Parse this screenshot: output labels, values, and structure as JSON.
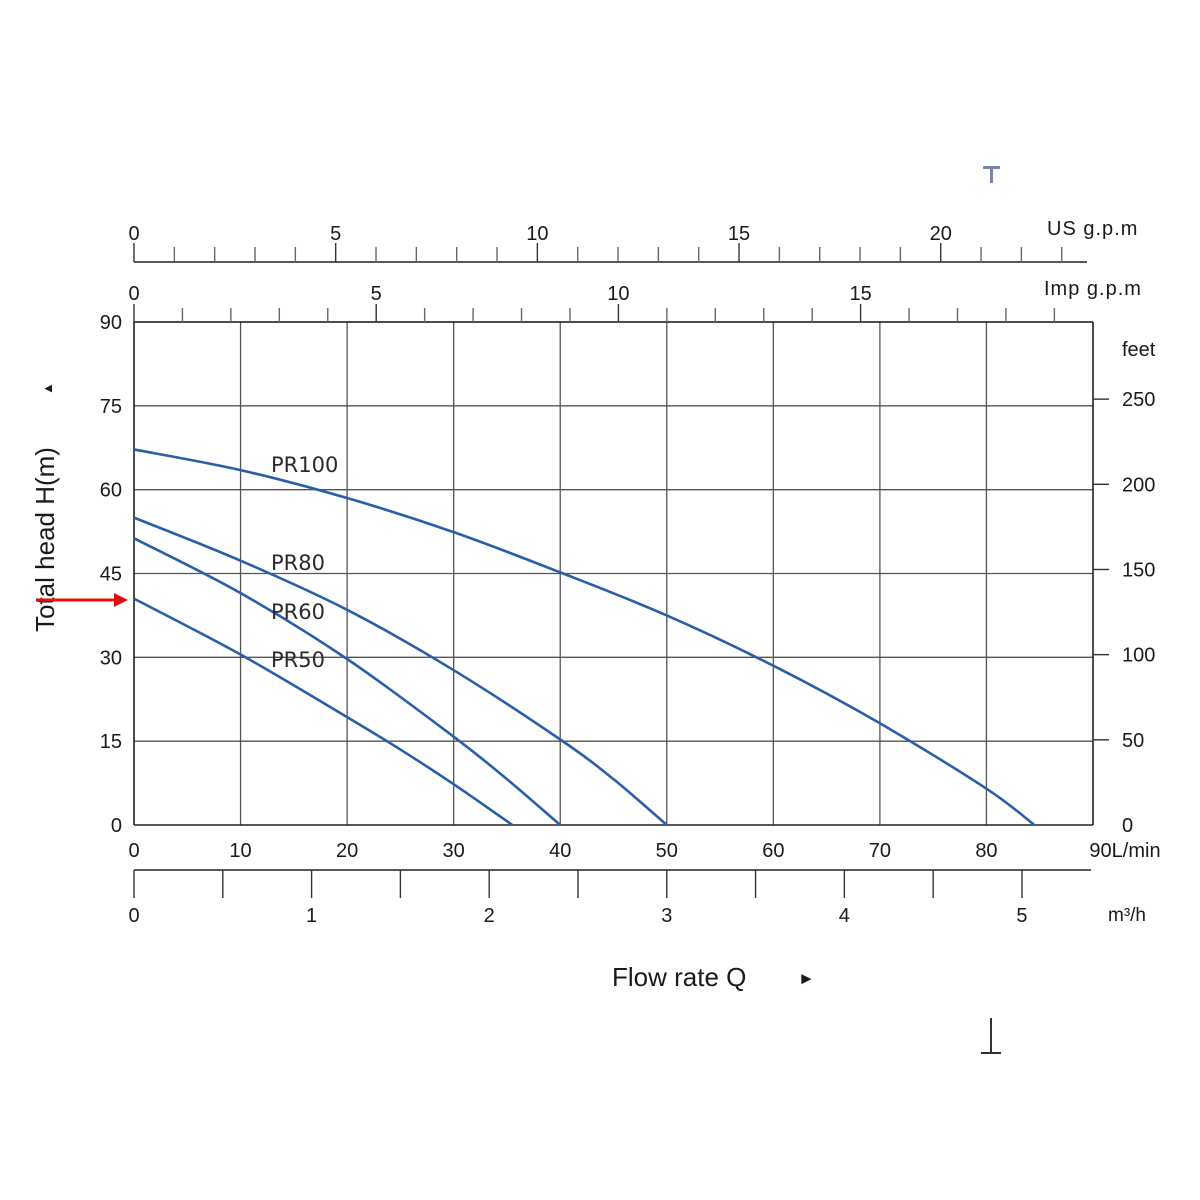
{
  "chart_data": {
    "type": "line",
    "ylabel": "Total head H(m)",
    "ylabel_arrow": "▲",
    "xlabel": "Flow rate Q",
    "xlabel_arrow": "►",
    "x_unit": "90L/min",
    "xlim": [
      0,
      90
    ],
    "ylim": [
      0,
      90
    ],
    "x_ticks": [
      "0",
      "10",
      "20",
      "30",
      "40",
      "50",
      "60",
      "70",
      "80"
    ],
    "y_ticks": [
      "0",
      "15",
      "30",
      "45",
      "60",
      "75",
      "90"
    ],
    "grid": true,
    "series": [
      {
        "name": "PR100",
        "x": [
          0,
          10,
          20,
          30,
          40,
          50,
          60,
          70,
          80,
          84.5
        ],
        "y": [
          67.2,
          63.5,
          58.5,
          52.4,
          45.2,
          37.5,
          28.5,
          18.2,
          6.5,
          0
        ]
      },
      {
        "name": "PR80",
        "x": [
          0,
          10,
          20,
          30,
          40,
          45,
          50
        ],
        "y": [
          55.0,
          47.3,
          38.5,
          27.7,
          15.3,
          8.2,
          0
        ]
      },
      {
        "name": "PR60",
        "x": [
          0,
          10,
          20,
          30,
          35,
          40
        ],
        "y": [
          51.3,
          41.5,
          29.7,
          15.8,
          8.2,
          0
        ]
      },
      {
        "name": "PR50",
        "x": [
          0,
          10,
          20,
          25,
          30,
          35.5
        ],
        "y": [
          40.5,
          30.5,
          19.3,
          13.5,
          7.3,
          0
        ]
      }
    ],
    "secondary_axes": {
      "us_gpm": {
        "unit": "US g.p.m",
        "ticks": [
          "0",
          "5",
          "10",
          "15",
          "20"
        ],
        "values": [
          0,
          5,
          10,
          15,
          20
        ]
      },
      "imp_gpm": {
        "unit": "Imp g.p.m",
        "ticks": [
          "0",
          "5",
          "10",
          "15"
        ],
        "values": [
          0,
          5,
          10,
          15
        ]
      },
      "m3h": {
        "unit": "m³/h",
        "ticks": [
          "0",
          "1",
          "2",
          "3",
          "4",
          "5"
        ],
        "values": [
          0,
          1,
          2,
          3,
          4,
          5
        ]
      },
      "feet": {
        "unit": "feet",
        "ticks": [
          "0",
          "50",
          "100",
          "150",
          "200",
          "250"
        ],
        "values": [
          0,
          50,
          100,
          150,
          200,
          250
        ]
      }
    },
    "colors": {
      "curve": "#2a5fa8",
      "arrow": "#e01010",
      "grid": "#555555"
    }
  }
}
